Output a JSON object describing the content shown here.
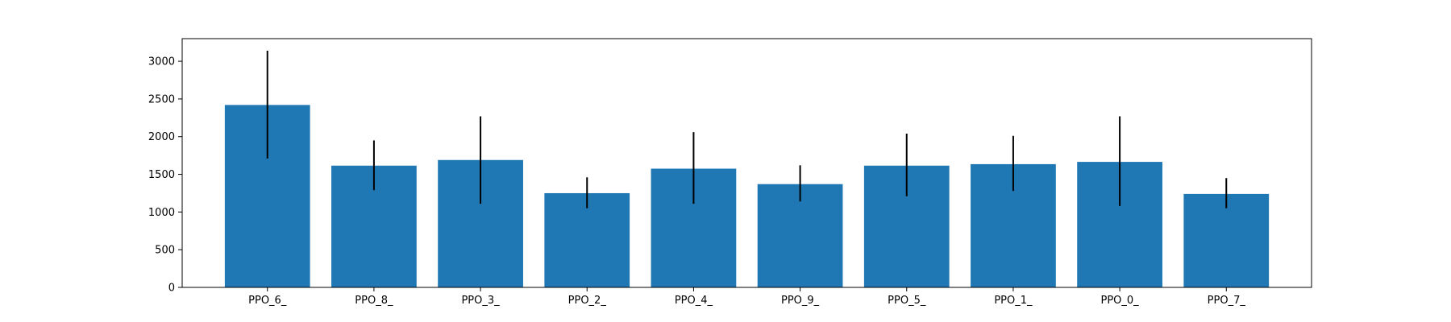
{
  "chart_data": {
    "type": "bar",
    "categories": [
      "PPO_6_",
      "PPO_8_",
      "PPO_3_",
      "PPO_2_",
      "PPO_4_",
      "PPO_9_",
      "PPO_5_",
      "PPO_1_",
      "PPO_0_",
      "PPO_7_"
    ],
    "values": [
      2420,
      1615,
      1690,
      1250,
      1575,
      1370,
      1615,
      1635,
      1665,
      1240
    ],
    "error_low": [
      1710,
      1290,
      1110,
      1050,
      1110,
      1140,
      1210,
      1280,
      1080,
      1050
    ],
    "error_high": [
      3140,
      1950,
      2270,
      1460,
      2060,
      1620,
      2040,
      2010,
      2270,
      1450
    ],
    "title": "",
    "xlabel": "",
    "ylabel": "",
    "ylim": [
      0,
      3300
    ],
    "yticks": [
      0,
      500,
      1000,
      1500,
      2000,
      2500,
      3000
    ],
    "grid": false,
    "bar_color": "#1f77b4",
    "error_color": "#000000"
  }
}
